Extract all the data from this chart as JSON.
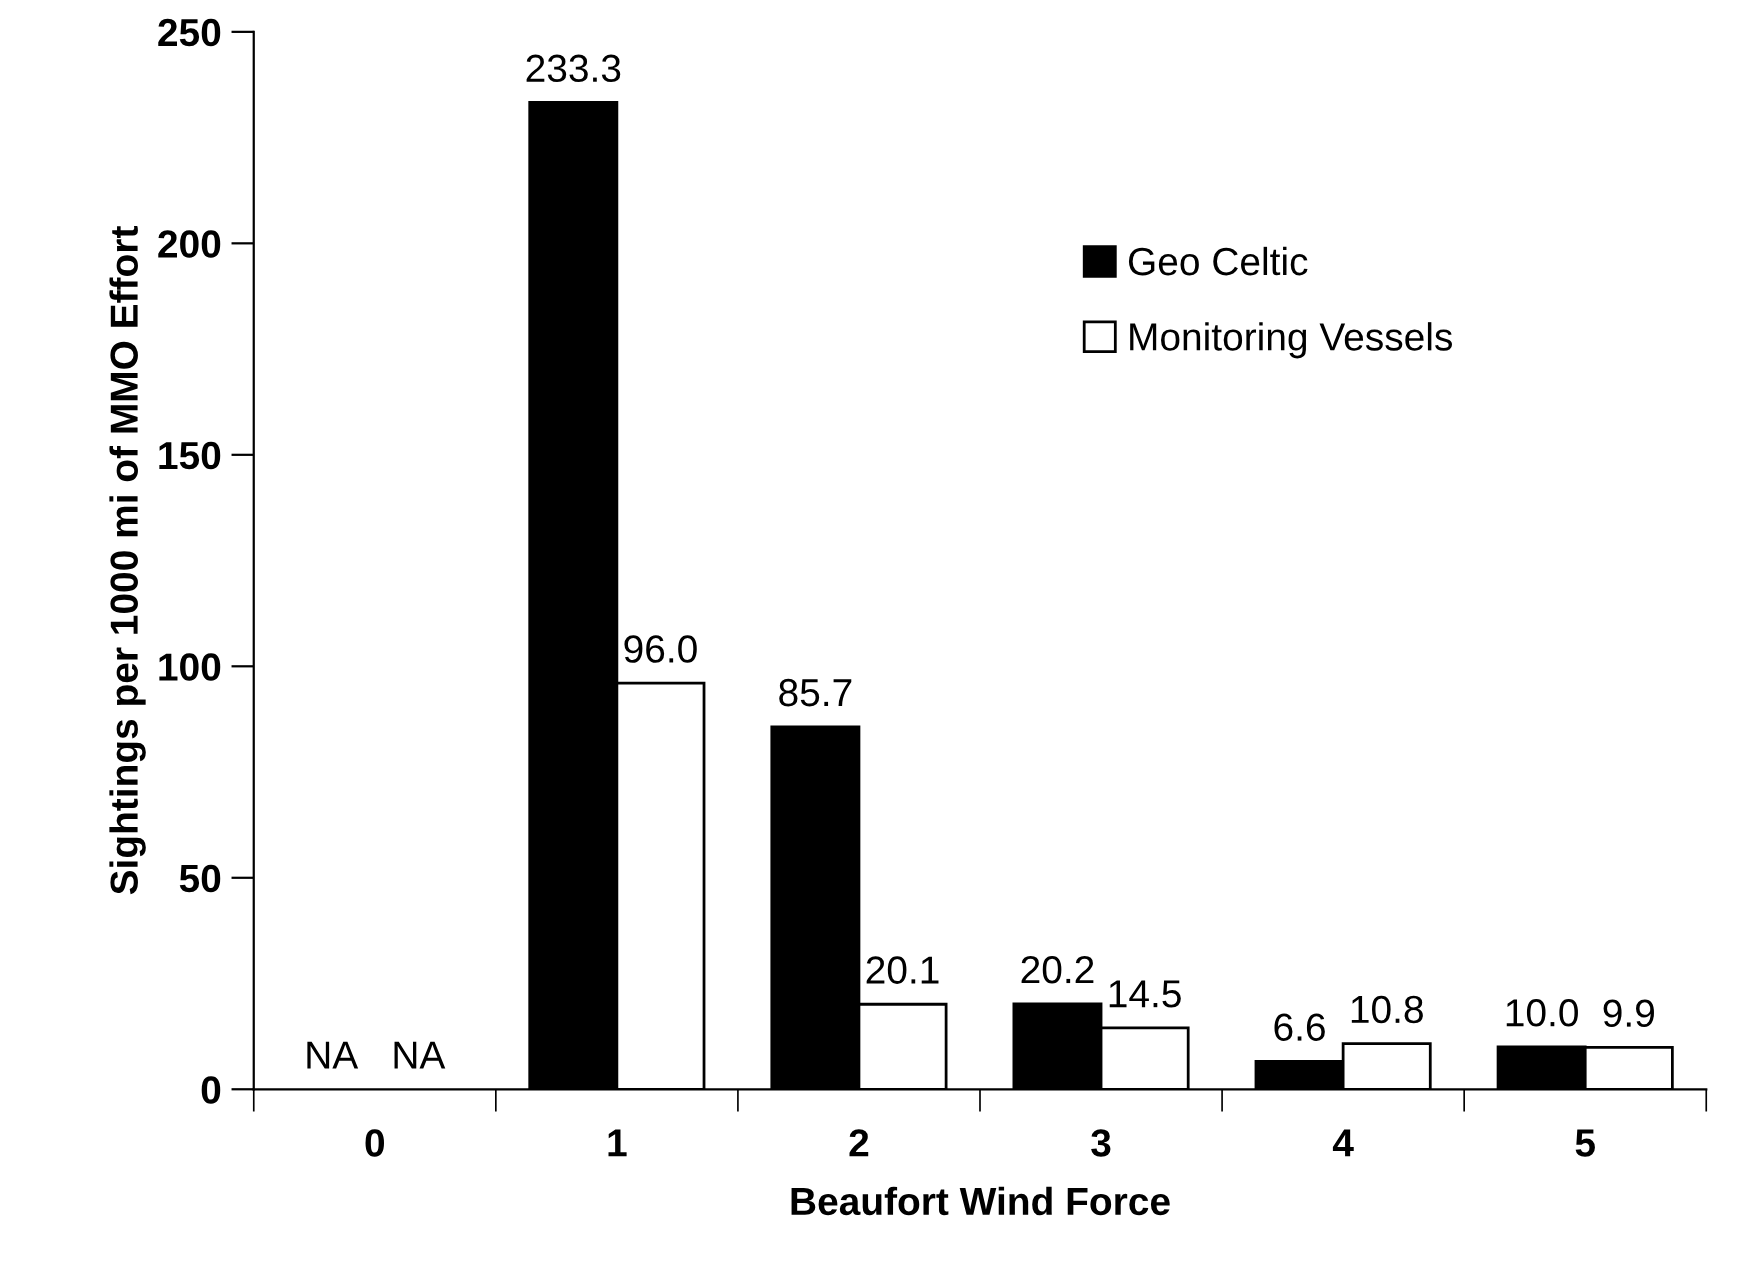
{
  "chart_data": {
    "type": "bar",
    "xlabel": "Beaufort Wind Force",
    "ylabel": "Sightings per 1000 mi of MMO Effort",
    "categories": [
      "0",
      "1",
      "2",
      "3",
      "4",
      "5"
    ],
    "series": [
      {
        "name": "Geo Celtic",
        "color": "#000000",
        "values": [
          null,
          233.3,
          85.7,
          20.2,
          6.6,
          10.0
        ],
        "value_labels": [
          "NA",
          "233.3",
          "85.7",
          "20.2",
          "6.6",
          "10.0"
        ]
      },
      {
        "name": "Monitoring Vessels",
        "color": "#ffffff",
        "values": [
          null,
          96.0,
          20.1,
          14.5,
          10.8,
          9.9
        ],
        "value_labels": [
          "NA",
          "96.0",
          "20.1",
          "14.5",
          "10.8",
          "9.9"
        ]
      }
    ],
    "ylim": [
      0,
      250
    ],
    "yticks": [
      0,
      50,
      100,
      150,
      200,
      250
    ],
    "grid": false,
    "legend": "top right"
  }
}
